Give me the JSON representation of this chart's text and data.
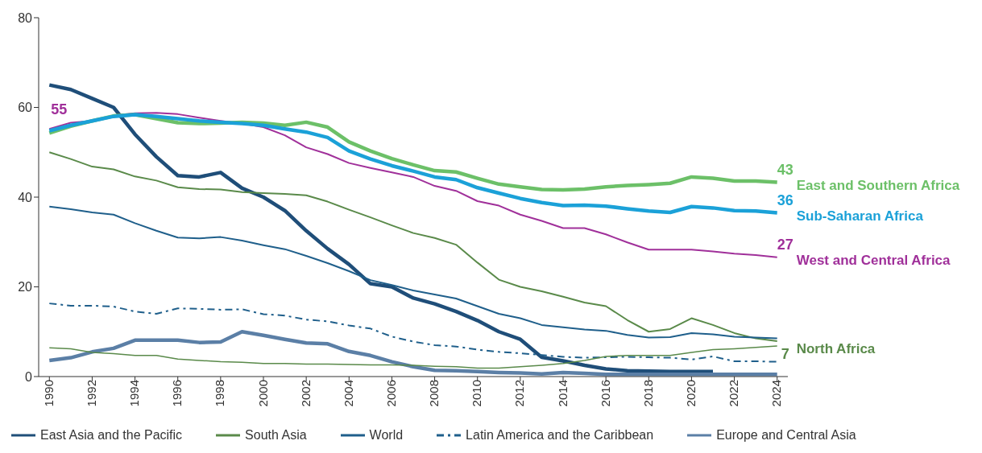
{
  "chart_data": {
    "type": "line",
    "x": [
      1990,
      1991,
      1992,
      1993,
      1994,
      1995,
      1996,
      1997,
      1998,
      1999,
      2000,
      2001,
      2002,
      2003,
      2004,
      2005,
      2006,
      2007,
      2008,
      2009,
      2010,
      2011,
      2012,
      2013,
      2014,
      2015,
      2016,
      2017,
      2018,
      2019,
      2020,
      2021,
      2022,
      2023,
      2024
    ],
    "xlim": [
      1989.5,
      2024.5
    ],
    "xticks": [
      1990,
      1992,
      1994,
      1996,
      1998,
      2000,
      2002,
      2004,
      2006,
      2008,
      2010,
      2012,
      2014,
      2016,
      2018,
      2020,
      2022,
      2024
    ],
    "ylim": [
      0,
      80
    ],
    "yticks": [
      0,
      20,
      40,
      60,
      80
    ],
    "legend": "bottom",
    "line_style": "solid",
    "marker": "none",
    "series": [
      {
        "name": "East Asia and the Pacific",
        "color": "#1f4e79",
        "values": [
          65,
          64,
          62,
          60,
          54,
          49,
          44.8,
          44.5,
          45.5,
          42,
          40,
          37,
          32.5,
          28.5,
          25,
          20.7,
          20,
          17.5,
          16.2,
          14.5,
          12.5,
          10,
          8.3,
          4.3,
          3.5,
          2.5,
          1.7,
          1.3,
          1.2,
          1.1,
          1.1,
          1.1,
          null,
          null,
          null
        ]
      },
      {
        "name": "South Asia",
        "color": "#5a8a4a",
        "values": [
          50,
          48.5,
          46.8,
          46.2,
          44.6,
          43.7,
          42.2,
          41.8,
          41.7,
          41.1,
          40.9,
          40.7,
          40.4,
          39,
          37.2,
          35.5,
          33.7,
          32,
          30.9,
          29.4,
          25.4,
          21.6,
          20,
          19,
          17.8,
          16.5,
          15.7,
          12.6,
          10,
          10.6,
          13,
          11.5,
          9.7,
          8.5,
          7.9
        ]
      },
      {
        "name": "World",
        "color": "#1f5f8b",
        "values": [
          37.9,
          37.3,
          36.6,
          36.1,
          34.2,
          32.5,
          31,
          30.8,
          31.1,
          30.3,
          29.3,
          28.4,
          26.9,
          25.3,
          23.5,
          21.5,
          20.4,
          19.2,
          18.3,
          17.4,
          15.7,
          14,
          13,
          11.5,
          11,
          10.5,
          10.2,
          9.3,
          8.7,
          8.8,
          9.7,
          9.4,
          8.9,
          8.7,
          8.5
        ]
      },
      {
        "name": "Latin America and the Caribbean",
        "color": "#1f5f8b",
        "line_style": "dashed",
        "values": [
          16.3,
          15.8,
          15.8,
          15.6,
          14.5,
          14,
          15.2,
          15.1,
          14.9,
          15,
          13.9,
          13.6,
          12.7,
          12.3,
          11.4,
          10.7,
          8.9,
          7.8,
          7,
          6.7,
          6,
          5.5,
          5.2,
          4.8,
          4.4,
          4.2,
          4.3,
          4.4,
          4.3,
          4.2,
          3.8,
          4.5,
          3.4,
          3.4,
          3.3
        ]
      },
      {
        "name": "Europe and Central Asia",
        "color": "#5b7fa6",
        "values": [
          3.6,
          4.2,
          5.5,
          6.3,
          8.1,
          8.1,
          8.1,
          7.6,
          7.7,
          10,
          9.2,
          8.3,
          7.5,
          7.3,
          5.6,
          4.7,
          3.3,
          2.2,
          1.4,
          1.3,
          1.1,
          0.9,
          0.8,
          0.6,
          0.9,
          0.7,
          0.5,
          0.5,
          0.5,
          0.5,
          0.5,
          0.5,
          0.5,
          0.5,
          0.5
        ]
      },
      {
        "name": "North Africa",
        "color": "#5a8a4a",
        "values": [
          6.4,
          6.2,
          5.4,
          5.1,
          4.7,
          4.7,
          3.9,
          3.6,
          3.3,
          3.2,
          2.9,
          2.9,
          2.8,
          2.8,
          2.7,
          2.6,
          2.6,
          2.5,
          2.3,
          2.2,
          1.9,
          1.9,
          2.2,
          2.5,
          2.9,
          3.6,
          4.5,
          4.7,
          4.7,
          4.7,
          5.4,
          6,
          6.2,
          6.5,
          6.8
        ],
        "value_labels": [
          null,
          null,
          null,
          null,
          null,
          null,
          null,
          null,
          null,
          null,
          null,
          null,
          null,
          null,
          null,
          null,
          null,
          null,
          null,
          null,
          null,
          null,
          null,
          null,
          null,
          null,
          null,
          null,
          null,
          null,
          null,
          null,
          null,
          null,
          "7"
        ]
      },
      {
        "name": "West and Central Africa",
        "color": "#a0309a",
        "values": [
          55.2,
          56.6,
          57,
          58.2,
          58.7,
          58.8,
          58.5,
          57.7,
          57,
          56.4,
          55.6,
          53.8,
          51.1,
          49.6,
          47.6,
          46.5,
          45.5,
          44.5,
          42.5,
          41.4,
          39.1,
          38.1,
          36.1,
          34.7,
          33.1,
          33.1,
          31.7,
          29.9,
          28.3,
          28.3,
          28.3,
          27.9,
          27.4,
          27.1,
          26.6
        ],
        "value_labels": [
          "55",
          null,
          null,
          null,
          null,
          null,
          null,
          null,
          null,
          null,
          null,
          null,
          null,
          null,
          null,
          null,
          null,
          null,
          null,
          null,
          null,
          null,
          null,
          null,
          null,
          null,
          null,
          null,
          null,
          null,
          null,
          null,
          null,
          null,
          "27"
        ]
      },
      {
        "name": "East and Southern Africa",
        "color": "#6cc068",
        "values": [
          54.3,
          55.8,
          57,
          58.1,
          58.4,
          57.5,
          56.6,
          56.4,
          56.5,
          56.7,
          56.5,
          56,
          56.7,
          55.6,
          52.3,
          50.3,
          48.6,
          47.2,
          45.9,
          45.6,
          44.2,
          42.9,
          42.3,
          41.7,
          41.6,
          41.8,
          42.3,
          42.6,
          42.8,
          43.1,
          44.5,
          44.2,
          43.6,
          43.6,
          43.3
        ],
        "value_labels": [
          null,
          null,
          null,
          null,
          null,
          null,
          null,
          null,
          null,
          null,
          null,
          null,
          null,
          null,
          null,
          null,
          null,
          null,
          null,
          null,
          null,
          null,
          null,
          null,
          null,
          null,
          null,
          null,
          null,
          null,
          null,
          null,
          null,
          null,
          "43"
        ]
      },
      {
        "name": "Sub-Saharan Africa",
        "color": "#1ba1d8",
        "values": [
          54.8,
          56,
          57,
          58,
          58.4,
          58,
          57.5,
          57,
          56.7,
          56.4,
          56,
          55.2,
          54.5,
          53.3,
          50.3,
          48.5,
          47,
          45.8,
          44.5,
          43.9,
          42.1,
          40.9,
          39.7,
          38.8,
          38.1,
          38.2,
          38,
          37.4,
          36.9,
          36.6,
          37.9,
          37.6,
          37,
          36.9,
          36.5
        ],
        "value_labels": [
          null,
          null,
          null,
          null,
          null,
          null,
          null,
          null,
          null,
          null,
          null,
          null,
          null,
          null,
          null,
          null,
          null,
          null,
          null,
          null,
          null,
          null,
          null,
          null,
          null,
          null,
          null,
          null,
          null,
          null,
          null,
          null,
          null,
          null,
          "36"
        ]
      }
    ]
  }
}
